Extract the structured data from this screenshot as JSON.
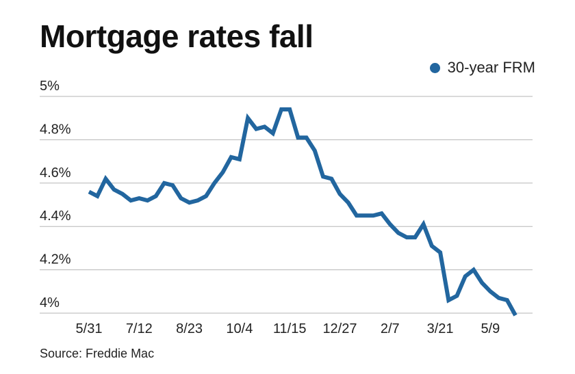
{
  "chart_data": {
    "type": "line",
    "title": "Mortgage rates fall",
    "source": "Source: Freddie Mac",
    "xlabel": "",
    "ylabel": "",
    "ylim": [
      4.0,
      5.0
    ],
    "y_ticks": [
      4.0,
      4.2,
      4.4,
      4.6,
      4.8,
      5.0
    ],
    "y_tick_labels": [
      "4%",
      "4.2%",
      "4.4%",
      "4.6%",
      "4.8%",
      "5%"
    ],
    "x_tick_labels": [
      "5/31",
      "7/12",
      "8/23",
      "10/4",
      "11/15",
      "12/27",
      "2/7",
      "3/21",
      "5/9"
    ],
    "x_tick_indices": [
      0,
      6,
      12,
      18,
      24,
      30,
      36,
      42,
      48
    ],
    "grid": true,
    "legend_position": "top-right",
    "series": [
      {
        "name": "30-year FRM",
        "color": "#22669f",
        "values": [
          4.56,
          4.54,
          4.62,
          4.57,
          4.55,
          4.52,
          4.53,
          4.52,
          4.54,
          4.6,
          4.59,
          4.53,
          4.51,
          4.52,
          4.54,
          4.6,
          4.65,
          4.72,
          4.71,
          4.9,
          4.85,
          4.86,
          4.83,
          4.94,
          4.94,
          4.81,
          4.81,
          4.75,
          4.63,
          4.62,
          4.55,
          4.51,
          4.45,
          4.45,
          4.45,
          4.46,
          4.41,
          4.37,
          4.35,
          4.35,
          4.41,
          4.31,
          4.28,
          4.06,
          4.08,
          4.17,
          4.2,
          4.14,
          4.1,
          4.07,
          4.06,
          3.99
        ]
      }
    ]
  },
  "legend": {
    "label": "30-year FRM",
    "color": "#22669f"
  }
}
